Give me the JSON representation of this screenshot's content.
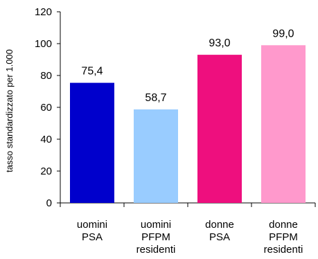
{
  "chart_data": {
    "type": "bar",
    "title": "",
    "xlabel": "",
    "ylabel": "tasso standardizzato per 1.000",
    "ylim": [
      0,
      120
    ],
    "yticks": [
      "0",
      "20",
      "40",
      "60",
      "80",
      "100",
      "120"
    ],
    "categories": [
      [
        "uomini",
        "PSA"
      ],
      [
        "uomini",
        "PFPM",
        "residenti"
      ],
      [
        "donne",
        "PSA"
      ],
      [
        "donne",
        "PFPM",
        "residenti"
      ]
    ],
    "values": [
      75.4,
      58.7,
      93.0,
      99.0
    ],
    "value_labels": [
      "75,4",
      "58,7",
      "93,0",
      "99,0"
    ],
    "colors": [
      "#0000cc",
      "#99ccff",
      "#ee0f7e",
      "#ff99cc"
    ],
    "grid": false,
    "legend": "none"
  }
}
